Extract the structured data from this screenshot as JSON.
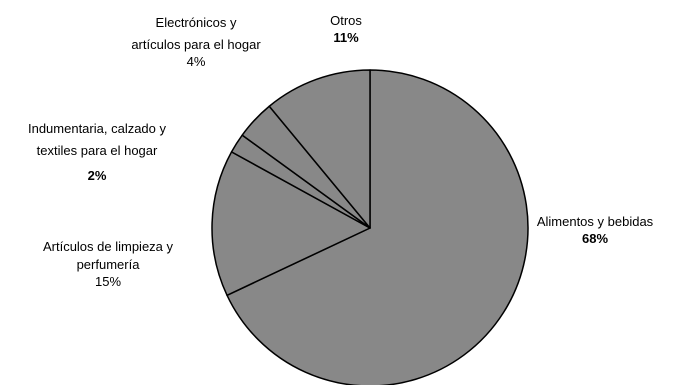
{
  "chart_data": {
    "type": "pie",
    "slice_color": "#888888",
    "edge_color": "#000000",
    "slices": [
      {
        "name_lines": [
          "Alimentos y bebidas"
        ],
        "value": 68,
        "pct_label": "68%",
        "pct_bold": true
      },
      {
        "name_lines": [
          "Artículos de limpieza y",
          "perfumería"
        ],
        "value": 15,
        "pct_label": "15%",
        "pct_bold": false
      },
      {
        "name_lines": [
          "Indumentaria, calzado y",
          "textiles para el hogar"
        ],
        "value": 2,
        "pct_label": "2%",
        "pct_bold": true
      },
      {
        "name_lines": [
          "Electrónicos y",
          "artículos para el hogar"
        ],
        "value": 4,
        "pct_label": "4%",
        "pct_bold": false
      },
      {
        "name_lines": [
          "Otros"
        ],
        "value": 11,
        "pct_label": "11%",
        "pct_bold": true
      }
    ]
  }
}
